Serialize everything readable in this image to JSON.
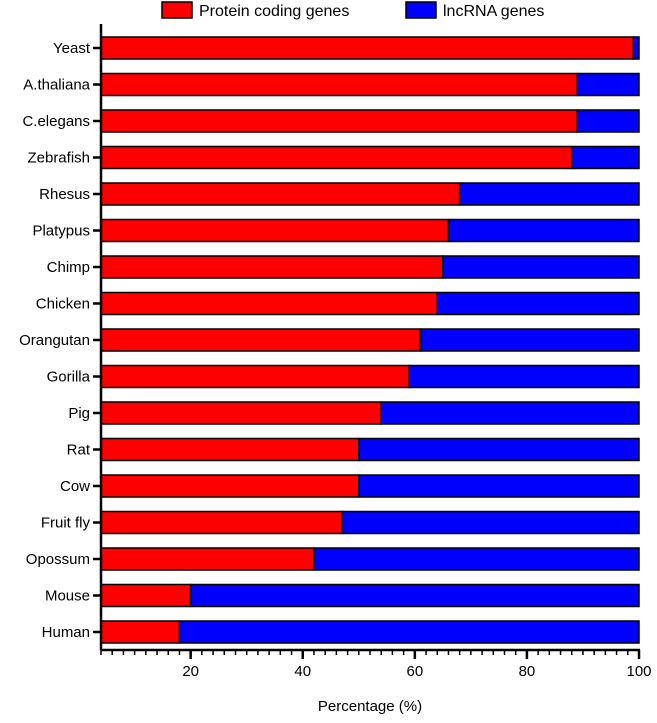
{
  "chart_data": {
    "type": "bar",
    "orientation": "horizontal",
    "stacked": true,
    "categories": [
      "Yeast",
      "A.thaliana",
      "C.elegans",
      "Zebrafish",
      "Rhesus",
      "Platypus",
      "Chimp",
      "Chicken",
      "Orangutan",
      "Gorilla",
      "Pig",
      "Rat",
      "Cow",
      "Fruit fly",
      "Opossum",
      "Mouse",
      "Human"
    ],
    "series": [
      {
        "name": "Protein coding genes",
        "color": "#ff0000",
        "values": [
          99,
          89,
          89,
          88,
          68,
          66,
          65,
          64,
          61,
          59,
          54,
          50,
          50,
          47,
          42,
          20,
          18
        ]
      },
      {
        "name": "lncRNA genes",
        "color": "#0000ff",
        "values": [
          1,
          11,
          11,
          12,
          32,
          34,
          35,
          36,
          39,
          41,
          46,
          50,
          50,
          53,
          58,
          80,
          82
        ]
      }
    ],
    "xlabel": "Percentage (%)",
    "ylabel": "",
    "xlim": [
      4,
      100
    ],
    "xticks": [
      "20",
      "40",
      "60",
      "80",
      "100"
    ],
    "legend": {
      "position": "top-center"
    },
    "grid": false
  }
}
